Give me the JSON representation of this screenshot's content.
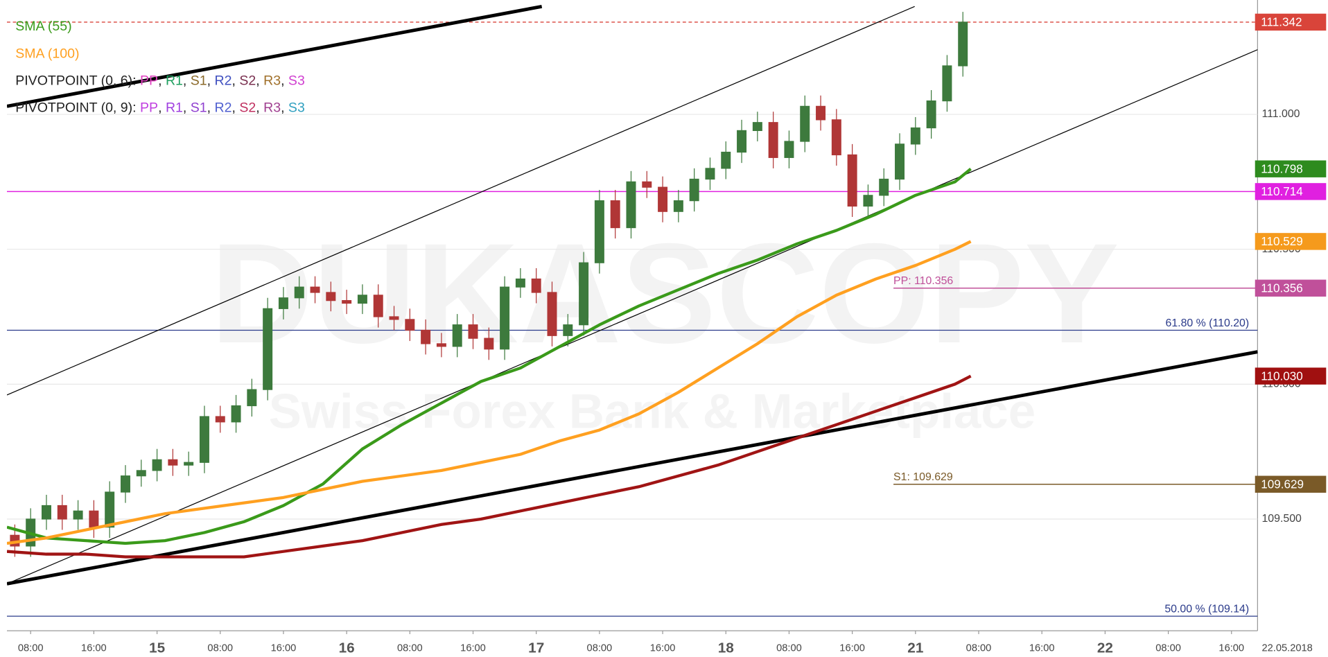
{
  "chart_data": {
    "type": "candlestick",
    "watermark": {
      "title": "DUKASCOPY",
      "subtitle": "Swiss Forex Bank & Marketplace"
    },
    "xlim": [
      5,
      163.3
    ],
    "ylim": [
      109.086,
      111.424
    ],
    "grid": true,
    "xticks": [
      {
        "value": 8,
        "label": "08:00"
      },
      {
        "value": 16,
        "label": "16:00"
      },
      {
        "value": 24,
        "label": "15"
      },
      {
        "value": 32,
        "label": "08:00"
      },
      {
        "value": 40,
        "label": "16:00"
      },
      {
        "value": 48,
        "label": "16"
      },
      {
        "value": 56,
        "label": "08:00"
      },
      {
        "value": 64,
        "label": "16:00"
      },
      {
        "value": 72,
        "label": "17"
      },
      {
        "value": 80,
        "label": "08:00"
      },
      {
        "value": 88,
        "label": "16:00"
      },
      {
        "value": 96,
        "label": "18"
      },
      {
        "value": 104,
        "label": "08:00"
      },
      {
        "value": 112,
        "label": "16:00"
      },
      {
        "value": 120,
        "label": "21"
      },
      {
        "value": 128,
        "label": "08:00"
      },
      {
        "value": 136,
        "label": "16:00"
      },
      {
        "value": 144,
        "label": "22"
      },
      {
        "value": 152,
        "label": "08:00"
      },
      {
        "value": 160,
        "label": "16:00"
      }
    ],
    "date_label": "22.05.2018",
    "yticks": [
      {
        "value": 109.5,
        "label": "109.500"
      },
      {
        "value": 110,
        "label": "110.000"
      },
      {
        "value": 110.5,
        "label": "110.500"
      },
      {
        "value": 111,
        "label": "111.000"
      }
    ],
    "candles": {
      "up_color": "#3d7a3d",
      "down_color": "#b03636",
      "x": [
        6,
        8,
        10,
        12,
        14,
        16,
        18,
        20,
        22,
        24,
        26,
        28,
        30,
        32,
        34,
        36,
        38,
        40,
        42,
        44,
        46,
        48,
        50,
        52,
        54,
        56,
        58,
        60,
        62,
        64,
        66,
        68,
        70,
        72,
        74,
        76,
        78,
        80,
        82,
        84,
        86,
        88,
        90,
        92,
        94,
        96,
        98,
        100,
        102,
        104,
        106,
        108,
        110,
        112,
        114,
        116,
        118,
        120,
        122,
        124,
        126
      ],
      "open": [
        109.44,
        109.4,
        109.5,
        109.55,
        109.5,
        109.53,
        109.47,
        109.6,
        109.66,
        109.68,
        109.72,
        109.7,
        109.71,
        109.88,
        109.86,
        109.92,
        109.98,
        110.28,
        110.32,
        110.36,
        110.34,
        110.31,
        110.3,
        110.33,
        110.25,
        110.24,
        110.2,
        110.15,
        110.14,
        110.22,
        110.17,
        110.13,
        110.36,
        110.39,
        110.34,
        110.18,
        110.22,
        110.45,
        110.68,
        110.58,
        110.75,
        110.73,
        110.64,
        110.68,
        110.76,
        110.8,
        110.86,
        110.94,
        110.97,
        110.84,
        110.9,
        111.03,
        110.98,
        110.85,
        110.66,
        110.7,
        110.76,
        110.89,
        110.95,
        111.05,
        111.18
      ],
      "high": [
        109.48,
        109.54,
        109.59,
        109.59,
        109.57,
        109.57,
        109.64,
        109.7,
        109.72,
        109.76,
        109.76,
        109.75,
        109.92,
        109.92,
        109.96,
        110.02,
        110.32,
        110.36,
        110.4,
        110.4,
        110.38,
        110.35,
        110.37,
        110.37,
        110.29,
        110.28,
        110.24,
        110.19,
        110.26,
        110.26,
        110.21,
        110.4,
        110.43,
        110.43,
        110.38,
        110.26,
        110.49,
        110.72,
        110.72,
        110.79,
        110.79,
        110.77,
        110.72,
        110.8,
        110.84,
        110.9,
        110.98,
        111.01,
        111.01,
        110.94,
        111.07,
        111.07,
        111.02,
        110.89,
        110.74,
        110.8,
        110.93,
        110.99,
        111.09,
        111.22,
        111.38
      ],
      "low": [
        109.36,
        109.36,
        109.46,
        109.46,
        109.46,
        109.43,
        109.43,
        109.56,
        109.62,
        109.64,
        109.66,
        109.66,
        109.67,
        109.82,
        109.82,
        109.88,
        109.94,
        110.24,
        110.28,
        110.3,
        110.27,
        110.26,
        110.26,
        110.21,
        110.2,
        110.16,
        110.11,
        110.1,
        110.1,
        110.13,
        110.09,
        110.09,
        110.32,
        110.3,
        110.14,
        110.14,
        110.18,
        110.41,
        110.54,
        110.54,
        110.69,
        110.6,
        110.6,
        110.64,
        110.72,
        110.76,
        110.82,
        110.9,
        110.8,
        110.8,
        110.86,
        110.94,
        110.81,
        110.62,
        110.62,
        110.66,
        110.72,
        110.85,
        110.91,
        111.01,
        111.14
      ],
      "close": [
        109.4,
        109.5,
        109.55,
        109.5,
        109.53,
        109.47,
        109.6,
        109.66,
        109.68,
        109.72,
        109.7,
        109.71,
        109.88,
        109.86,
        109.92,
        109.98,
        110.28,
        110.32,
        110.36,
        110.34,
        110.31,
        110.3,
        110.33,
        110.25,
        110.24,
        110.2,
        110.15,
        110.14,
        110.22,
        110.17,
        110.13,
        110.36,
        110.39,
        110.34,
        110.18,
        110.22,
        110.45,
        110.68,
        110.58,
        110.75,
        110.73,
        110.64,
        110.68,
        110.76,
        110.8,
        110.86,
        110.94,
        110.97,
        110.84,
        110.9,
        111.03,
        110.98,
        110.85,
        110.66,
        110.7,
        110.76,
        110.89,
        110.95,
        111.05,
        111.18,
        111.342
      ]
    },
    "series_x": [
      5,
      10,
      15,
      20,
      25,
      30,
      35,
      40,
      45,
      50,
      55,
      60,
      65,
      70,
      75,
      80,
      85,
      90,
      95,
      100,
      105,
      110,
      115,
      120,
      125,
      127
    ],
    "series": [
      {
        "name": "SMA (55)",
        "color": "#3a9a1a",
        "values": [
          109.47,
          109.43,
          109.42,
          109.41,
          109.42,
          109.45,
          109.49,
          109.55,
          109.63,
          109.76,
          109.85,
          109.93,
          110.01,
          110.06,
          110.14,
          110.22,
          110.29,
          110.35,
          110.41,
          110.46,
          110.52,
          110.57,
          110.63,
          110.7,
          110.75,
          110.798
        ]
      },
      {
        "name": "SMA (100)",
        "color": "#ffa020",
        "values": [
          109.41,
          109.43,
          109.46,
          109.49,
          109.52,
          109.54,
          109.56,
          109.58,
          109.61,
          109.64,
          109.66,
          109.68,
          109.71,
          109.74,
          109.79,
          109.83,
          109.89,
          109.97,
          110.06,
          110.15,
          110.25,
          110.33,
          110.39,
          110.44,
          110.5,
          110.529
        ]
      },
      {
        "color": "#a01414",
        "values": [
          109.38,
          109.37,
          109.37,
          109.36,
          109.36,
          109.36,
          109.36,
          109.38,
          109.4,
          109.42,
          109.45,
          109.48,
          109.5,
          109.53,
          109.56,
          109.59,
          109.62,
          109.66,
          109.7,
          109.75,
          109.8,
          109.85,
          109.9,
          109.95,
          110.0,
          110.03
        ]
      }
    ],
    "legend_rows": [
      {
        "name": "PIVOTPOINT (0, 6):",
        "separator": ", ",
        "parts": [
          {
            "text": "PP",
            "color": "#e040c0"
          },
          {
            "text": "R1",
            "color": "#20a060"
          },
          {
            "text": "S1",
            "color": "#8b6a2a"
          },
          {
            "text": "R2",
            "color": "#4050c0"
          },
          {
            "text": "S2",
            "color": "#7a3050"
          },
          {
            "text": "R3",
            "color": "#a0702a"
          },
          {
            "text": "S3",
            "color": "#d040d0"
          }
        ]
      },
      {
        "name": "PIVOTPOINT (0, 9):",
        "separator": ", ",
        "parts": [
          {
            "text": "PP",
            "color": "#c040e0"
          },
          {
            "text": "R1",
            "color": "#a040e0"
          },
          {
            "text": "S1",
            "color": "#9040d0"
          },
          {
            "text": "R2",
            "color": "#5060d0"
          },
          {
            "text": "S2",
            "color": "#c03060"
          },
          {
            "text": "R3",
            "color": "#a04090"
          },
          {
            "text": "S3",
            "color": "#30a0c0"
          }
        ]
      }
    ],
    "trendlines": [
      {
        "x": [
          5,
          72.7
        ],
        "y": [
          111.03,
          111.4
        ],
        "width": 4
      },
      {
        "x": [
          5,
          163.3
        ],
        "y": [
          109.26,
          110.12
        ],
        "width": 4
      },
      {
        "x": [
          5,
          119.9
        ],
        "y": [
          109.96,
          111.4
        ],
        "width": 1
      },
      {
        "x": [
          5,
          163.3
        ],
        "y": [
          109.26,
          111.24
        ],
        "width": 1
      }
    ],
    "levels": [
      {
        "value": 111.342,
        "label": "111.342",
        "color": "#d9443a",
        "line": "dashed"
      },
      {
        "value": 110.798,
        "label": "110.798",
        "color": "#2e8b1e"
      },
      {
        "value": 110.714,
        "label": "110.714",
        "color": "#e020e0",
        "line": "solid"
      },
      {
        "value": 110.529,
        "label": "110.529",
        "color": "#f59a1c"
      },
      {
        "value": 110.356,
        "label": "110.356",
        "color": "#c0509a"
      },
      {
        "value": 110.03,
        "label": "110.030",
        "color": "#a01010"
      },
      {
        "value": 109.629,
        "label": "109.629",
        "color": "#7a5a28"
      }
    ],
    "pivot_lines": [
      {
        "value": 110.356,
        "label": "PP: 110.356",
        "color": "#c0509a"
      },
      {
        "value": 109.629,
        "label": "S1: 109.629",
        "color": "#7a5a28"
      }
    ],
    "fib_lines": [
      {
        "value": 110.2,
        "label": "61.80 % (110.20)",
        "color": "#2a3a8a"
      },
      {
        "value": 109.14,
        "label": "50.00 % (109.14)",
        "color": "#2a3a8a"
      }
    ]
  }
}
